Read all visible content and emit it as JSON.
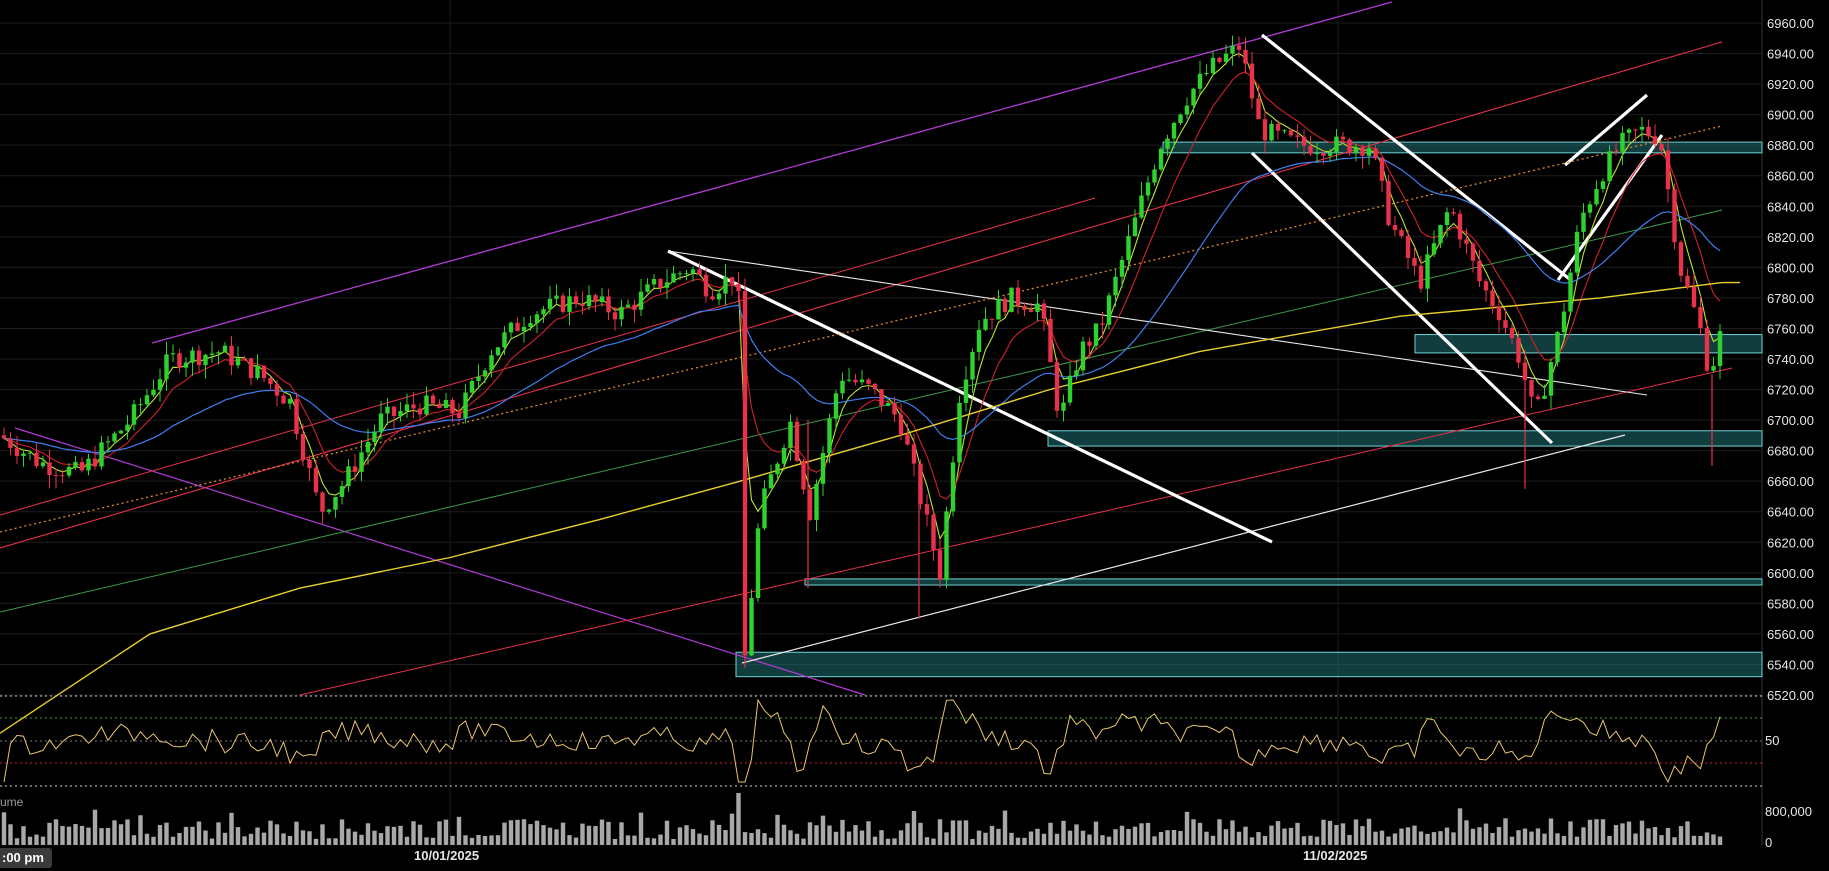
{
  "colors": {
    "background": "#000000",
    "grid": "#1c1c1c",
    "up": "#2fd12f",
    "down": "#e8314a",
    "ema_fast": "#b7e62a",
    "ema_mid": "#d2202e",
    "ema_blue": "#3d7ff0",
    "ema_200": "#e8cf2d",
    "zone": "#1f6f73",
    "rsi": "#e8c66a",
    "volume": "#a8a8a8",
    "magenta": "#b23bd6",
    "green_line": "#3b9a4a",
    "orange_dotted": "#e08a2a"
  },
  "price_axis": {
    "ticks": [
      "6960.00",
      "6940.00",
      "6920.00",
      "6900.00",
      "6880.00",
      "6860.00",
      "6840.00",
      "6820.00",
      "6800.00",
      "6780.00",
      "6760.00",
      "6740.00",
      "6720.00",
      "6700.00",
      "6680.00",
      "6660.00",
      "6640.00",
      "6620.00",
      "6600.00",
      "6580.00",
      "6560.00",
      "6540.00",
      "6520.00"
    ]
  },
  "rsi_axis": {
    "label": "50"
  },
  "volume_axis": {
    "labels": [
      "800,000",
      "0"
    ],
    "title": "ume"
  },
  "time_axis": {
    "labels": [
      "10/01/2025",
      "11/02/2025"
    ],
    "current_time": ":00 pm"
  },
  "chart_data": {
    "type": "candlestick",
    "ylim": [
      6520,
      6960
    ],
    "series": [
      {
        "name": "Price",
        "values_note": "OHLC candles"
      }
    ],
    "x": [
      "10/01/2025",
      "11/02/2025"
    ],
    "zones": [
      {
        "low": 6875,
        "high": 6882
      },
      {
        "low": 6744,
        "high": 6756
      },
      {
        "low": 6683,
        "high": 6693
      },
      {
        "low": 6592,
        "high": 6596
      },
      {
        "low": 6532,
        "high": 6548
      }
    ],
    "grid": true
  }
}
